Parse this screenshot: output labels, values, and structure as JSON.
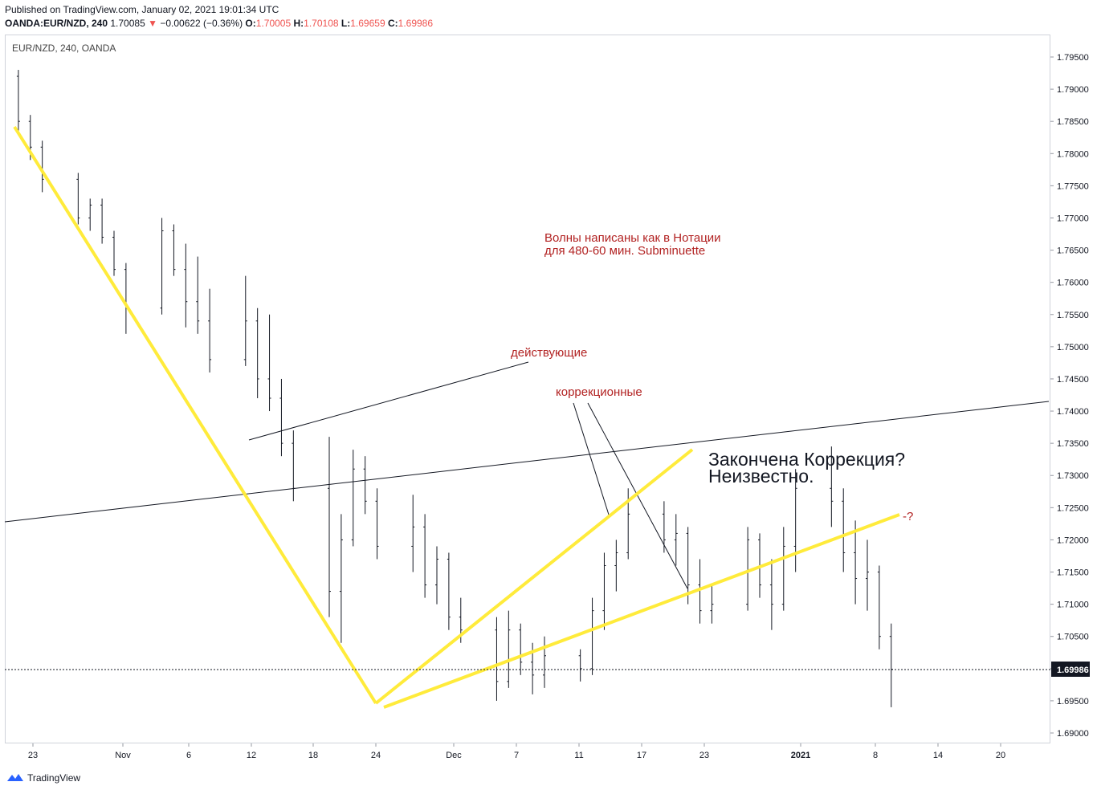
{
  "header": {
    "published": "Published on TradingView.com, January 02, 2021 19:01:34 UTC",
    "symbol": "OANDA:EUR/NZD, 240",
    "last": "1.70085",
    "change_arrow": "▼",
    "change": "−0.00622 (−0.36%)",
    "o_label": "O:",
    "o_value": "1.70005",
    "h_label": "H:",
    "h_value": "1.70108",
    "l_label": "L:",
    "l_value": "1.69659",
    "c_label": "C:",
    "c_value": "1.69986"
  },
  "chart_overlay_symbol": "EUR/NZD, 240, OANDA",
  "footer": {
    "brand": "TradingView"
  },
  "colors": {
    "candle": "#131722",
    "down": "#ef5350",
    "trend": "#ffeb3b",
    "annotation": "#b22222",
    "price_badge": "#131722"
  },
  "annotations": {
    "note1_line1": "Волны написаны как в Нотации",
    "note1_line2": "для 480-60 мин. Subminuette",
    "impulse": "действующие",
    "corrective": "коррекционные",
    "question_line1": "Закончена Коррекция?",
    "question_line2": "Неизвестно.",
    "unknown": "-?"
  },
  "chart_data": {
    "type": "ohlc",
    "title": "EUR/NZD, 240, OANDA",
    "y_ticks": [
      "1.79500",
      "1.79000",
      "1.78500",
      "1.78000",
      "1.77500",
      "1.77000",
      "1.76500",
      "1.76000",
      "1.75500",
      "1.75000",
      "1.74500",
      "1.74000",
      "1.73500",
      "1.73000",
      "1.72500",
      "1.72000",
      "1.71500",
      "1.71000",
      "1.70500",
      "1.70000",
      "1.69500",
      "1.69000"
    ],
    "x_ticks": [
      "23",
      "Nov",
      "6",
      "12",
      "18",
      "24",
      "Dec",
      "7",
      "11",
      "17",
      "23",
      "2021",
      "8",
      "14",
      "20"
    ],
    "ylim": [
      1.6887,
      1.7987
    ],
    "last_price": "1.69986",
    "bars": [
      {
        "date": "2020-10-21",
        "o": 1.792,
        "h": 1.793,
        "l": 1.783,
        "c": 1.785
      },
      {
        "date": "2020-10-22",
        "o": 1.785,
        "h": 1.786,
        "l": 1.779,
        "c": 1.781
      },
      {
        "date": "2020-10-23",
        "o": 1.781,
        "h": 1.782,
        "l": 1.774,
        "c": 1.776
      },
      {
        "date": "2020-10-26",
        "o": 1.776,
        "h": 1.777,
        "l": 1.769,
        "c": 1.77
      },
      {
        "date": "2020-10-27",
        "o": 1.77,
        "h": 1.773,
        "l": 1.768,
        "c": 1.772
      },
      {
        "date": "2020-10-28",
        "o": 1.772,
        "h": 1.773,
        "l": 1.766,
        "c": 1.767
      },
      {
        "date": "2020-10-29",
        "o": 1.767,
        "h": 1.768,
        "l": 1.761,
        "c": 1.762
      },
      {
        "date": "2020-10-30",
        "o": 1.762,
        "h": 1.763,
        "l": 1.752,
        "c": 1.756
      },
      {
        "date": "2020-11-02",
        "o": 1.756,
        "h": 1.77,
        "l": 1.755,
        "c": 1.768
      },
      {
        "date": "2020-11-03",
        "o": 1.768,
        "h": 1.769,
        "l": 1.761,
        "c": 1.762
      },
      {
        "date": "2020-11-04",
        "o": 1.762,
        "h": 1.766,
        "l": 1.753,
        "c": 1.757
      },
      {
        "date": "2020-11-05",
        "o": 1.757,
        "h": 1.764,
        "l": 1.752,
        "c": 1.754
      },
      {
        "date": "2020-11-06",
        "o": 1.754,
        "h": 1.759,
        "l": 1.746,
        "c": 1.748
      },
      {
        "date": "2020-11-09",
        "o": 1.748,
        "h": 1.761,
        "l": 1.747,
        "c": 1.754
      },
      {
        "date": "2020-11-10",
        "o": 1.754,
        "h": 1.756,
        "l": 1.742,
        "c": 1.745
      },
      {
        "date": "2020-11-11",
        "o": 1.745,
        "h": 1.755,
        "l": 1.74,
        "c": 1.742
      },
      {
        "date": "2020-11-12",
        "o": 1.742,
        "h": 1.745,
        "l": 1.733,
        "c": 1.735
      },
      {
        "date": "2020-11-13",
        "o": 1.735,
        "h": 1.737,
        "l": 1.726,
        "c": 1.728
      },
      {
        "date": "2020-11-16",
        "o": 1.728,
        "h": 1.736,
        "l": 1.708,
        "c": 1.712
      },
      {
        "date": "2020-11-17",
        "o": 1.712,
        "h": 1.724,
        "l": 1.704,
        "c": 1.72
      },
      {
        "date": "2020-11-18",
        "o": 1.72,
        "h": 1.734,
        "l": 1.719,
        "c": 1.731
      },
      {
        "date": "2020-11-19",
        "o": 1.731,
        "h": 1.733,
        "l": 1.724,
        "c": 1.726
      },
      {
        "date": "2020-11-20",
        "o": 1.726,
        "h": 1.728,
        "l": 1.717,
        "c": 1.719
      },
      {
        "date": "2020-11-23",
        "o": 1.719,
        "h": 1.727,
        "l": 1.715,
        "c": 1.722
      },
      {
        "date": "2020-11-24",
        "o": 1.722,
        "h": 1.724,
        "l": 1.711,
        "c": 1.713
      },
      {
        "date": "2020-11-25",
        "o": 1.713,
        "h": 1.719,
        "l": 1.71,
        "c": 1.717
      },
      {
        "date": "2020-11-26",
        "o": 1.717,
        "h": 1.718,
        "l": 1.706,
        "c": 1.708
      },
      {
        "date": "2020-11-27",
        "o": 1.708,
        "h": 1.711,
        "l": 1.704,
        "c": 1.706
      },
      {
        "date": "2020-11-30",
        "o": 1.706,
        "h": 1.708,
        "l": 1.695,
        "c": 1.698
      },
      {
        "date": "2020-12-01",
        "o": 1.698,
        "h": 1.709,
        "l": 1.697,
        "c": 1.706
      },
      {
        "date": "2020-12-02",
        "o": 1.706,
        "h": 1.707,
        "l": 1.699,
        "c": 1.701
      },
      {
        "date": "2020-12-03",
        "o": 1.701,
        "h": 1.704,
        "l": 1.696,
        "c": 1.699
      },
      {
        "date": "2020-12-04",
        "o": 1.699,
        "h": 1.705,
        "l": 1.697,
        "c": 1.702
      },
      {
        "date": "2020-12-07",
        "o": 1.702,
        "h": 1.703,
        "l": 1.698,
        "c": 1.7
      },
      {
        "date": "2020-12-08",
        "o": 1.7,
        "h": 1.711,
        "l": 1.699,
        "c": 1.709
      },
      {
        "date": "2020-12-09",
        "o": 1.709,
        "h": 1.718,
        "l": 1.706,
        "c": 1.716
      },
      {
        "date": "2020-12-10",
        "o": 1.716,
        "h": 1.72,
        "l": 1.712,
        "c": 1.718
      },
      {
        "date": "2020-12-11",
        "o": 1.718,
        "h": 1.728,
        "l": 1.717,
        "c": 1.724
      },
      {
        "date": "2020-12-14",
        "o": 1.724,
        "h": 1.726,
        "l": 1.718,
        "c": 1.72
      },
      {
        "date": "2020-12-15",
        "o": 1.72,
        "h": 1.724,
        "l": 1.716,
        "c": 1.721
      },
      {
        "date": "2020-12-16",
        "o": 1.721,
        "h": 1.722,
        "l": 1.71,
        "c": 1.713
      },
      {
        "date": "2020-12-17",
        "o": 1.713,
        "h": 1.717,
        "l": 1.707,
        "c": 1.709
      },
      {
        "date": "2020-12-18",
        "o": 1.709,
        "h": 1.713,
        "l": 1.707,
        "c": 1.71
      },
      {
        "date": "2020-12-21",
        "o": 1.71,
        "h": 1.722,
        "l": 1.709,
        "c": 1.72
      },
      {
        "date": "2020-12-22",
        "o": 1.72,
        "h": 1.721,
        "l": 1.711,
        "c": 1.713
      },
      {
        "date": "2020-12-23",
        "o": 1.713,
        "h": 1.717,
        "l": 1.706,
        "c": 1.71
      },
      {
        "date": "2020-12-24",
        "o": 1.71,
        "h": 1.722,
        "l": 1.709,
        "c": 1.719
      },
      {
        "date": "2020-12-25",
        "o": 1.719,
        "h": 1.731,
        "l": 1.715,
        "c": 1.728
      },
      {
        "date": "2020-12-28",
        "o": 1.728,
        "h": 1.7345,
        "l": 1.722,
        "c": 1.726
      },
      {
        "date": "2020-12-29",
        "o": 1.726,
        "h": 1.728,
        "l": 1.715,
        "c": 1.718
      },
      {
        "date": "2020-12-30",
        "o": 1.718,
        "h": 1.723,
        "l": 1.71,
        "c": 1.714
      },
      {
        "date": "2020-12-31",
        "o": 1.714,
        "h": 1.72,
        "l": 1.709,
        "c": 1.715
      },
      {
        "date": "2021-01-01",
        "o": 1.715,
        "h": 1.716,
        "l": 1.703,
        "c": 1.705
      },
      {
        "date": "2021-01-02",
        "o": 1.705,
        "h": 1.707,
        "l": 1.694,
        "c": 1.6999
      }
    ]
  }
}
